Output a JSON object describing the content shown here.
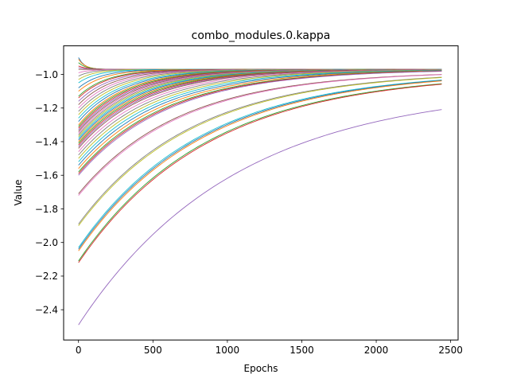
{
  "chart_data": {
    "type": "line",
    "title": "combo_modules.0.kappa",
    "xlabel": "Epochs",
    "ylabel": "Value",
    "xlim": [
      -100,
      2550
    ],
    "ylim": [
      -2.58,
      -0.83
    ],
    "xticks": [
      0,
      500,
      1000,
      1500,
      2000,
      2500
    ],
    "yticks": [
      -2.4,
      -2.2,
      -2.0,
      -1.8,
      -1.6,
      -1.4,
      -1.2,
      -1.0
    ],
    "ytick_labels": [
      "−2.4",
      "−2.2",
      "−2.0",
      "−1.8",
      "−1.6",
      "−1.4",
      "−1.2",
      "−1.0"
    ],
    "grid": false,
    "legend": "none",
    "colors": [
      "#1f77b4",
      "#ff7f0e",
      "#2ca02c",
      "#d62728",
      "#9467bd",
      "#8c564b",
      "#e377c2",
      "#7f7f7f",
      "#bcbd22",
      "#17becf"
    ],
    "x_end": 2440,
    "series_start_values": [
      -0.9,
      -0.91,
      -0.93,
      -0.95,
      -0.96,
      -0.97,
      -0.99,
      -1.01,
      -1.03,
      -1.05,
      -1.08,
      -1.1,
      -1.13,
      -1.14,
      -1.16,
      -1.18,
      -1.2,
      -1.22,
      -1.24,
      -1.26,
      -1.28,
      -1.3,
      -1.31,
      -1.32,
      -1.33,
      -1.34,
      -1.35,
      -1.36,
      -1.37,
      -1.38,
      -1.39,
      -1.4,
      -1.41,
      -1.42,
      -1.43,
      -1.44,
      -1.46,
      -1.48,
      -1.5,
      -1.52,
      -1.54,
      -1.56,
      -1.58,
      -1.59,
      -1.6,
      -1.71,
      -1.72,
      -1.89,
      -1.9,
      -2.03,
      -2.04,
      -2.05,
      -2.11,
      -2.12,
      -2.49
    ],
    "series_end_values": [
      -0.97,
      -0.97,
      -0.97,
      -0.97,
      -0.97,
      -0.97,
      -0.97,
      -0.97,
      -0.97,
      -0.97,
      -0.97,
      -0.97,
      -0.97,
      -0.97,
      -0.97,
      -0.97,
      -0.97,
      -0.97,
      -0.97,
      -0.97,
      -0.97,
      -0.97,
      -0.97,
      -0.97,
      -0.97,
      -0.97,
      -0.97,
      -0.97,
      -0.97,
      -0.97,
      -0.97,
      -0.97,
      -0.97,
      -0.97,
      -0.97,
      -0.97,
      -0.97,
      -0.97,
      -0.97,
      -0.97,
      -0.97,
      -0.97,
      -0.97,
      -0.97,
      -0.97,
      -0.98,
      -0.98,
      -0.98,
      -0.98,
      -0.98,
      -0.98,
      -0.98,
      -0.99,
      -0.99,
      -1.07
    ],
    "series_time_constants": [
      40,
      45,
      50,
      55,
      60,
      70,
      80,
      90,
      110,
      130,
      150,
      170,
      190,
      200,
      215,
      230,
      245,
      260,
      275,
      290,
      300,
      310,
      320,
      330,
      340,
      350,
      360,
      370,
      380,
      390,
      400,
      410,
      420,
      430,
      440,
      450,
      470,
      490,
      510,
      530,
      550,
      570,
      590,
      600,
      610,
      680,
      690,
      760,
      770,
      820,
      830,
      840,
      860,
      870,
      1050
    ]
  }
}
